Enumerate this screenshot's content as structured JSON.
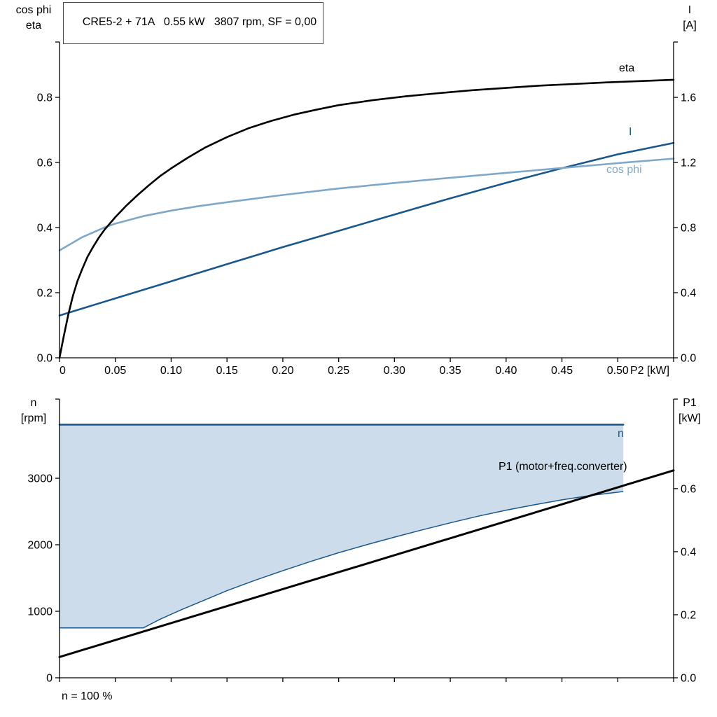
{
  "header": {
    "title": "CRE5-2 + 71A   0.55 kW   3807 rpm, SF = 0,00"
  },
  "axis_corner_labels": {
    "top_left_line1": "cos phi",
    "top_left_line2": "eta",
    "top_right_line1": "I",
    "top_right_line2": "[A]",
    "bottom_left_line1": "n",
    "bottom_left_line2": "[rpm]",
    "bottom_right_line1": "P1",
    "bottom_right_line2": "[kW]"
  },
  "curve_labels": {
    "eta": "eta",
    "current": "I",
    "cos_phi": "cos phi",
    "p1": "P1 (motor+freq.converter)",
    "n": "n"
  },
  "footer": {
    "speed_note": "n = 100 %"
  },
  "x_axis_label": "P2 [kW]",
  "colors": {
    "black": "#000000",
    "dark_blue": "#1a578c",
    "light_blue": "#7fa8c8",
    "fill_blue": "#cddcea"
  },
  "chart_data": [
    {
      "type": "line",
      "title": "CRE5-2 + 71A 0.55 kW 3807 rpm, SF = 0,00",
      "xlabel": "P2 [kW]",
      "ylabel_left": "cos phi, eta",
      "ylabel_right": "I [A]",
      "xlim": [
        0,
        0.55
      ],
      "ylim_left": [
        0,
        0.97
      ],
      "ylim_right": [
        0,
        1.94
      ],
      "xticks": {
        "values": [
          0,
          0.05,
          0.1,
          0.15,
          0.2,
          0.25,
          0.3,
          0.35,
          0.4,
          0.45,
          0.5,
          0.55
        ],
        "labels": [
          "0",
          "0.05",
          "0.10",
          "0.15",
          "0.20",
          "0.25",
          "0.30",
          "0.35",
          "0.40",
          "0.45",
          "0.50",
          ""
        ]
      },
      "yticks_left": {
        "values": [
          0,
          0.2,
          0.4,
          0.6,
          0.8
        ],
        "labels": [
          "0.0",
          "0.2",
          "0.4",
          "0.6",
          "0.8"
        ]
      },
      "yticks_right": {
        "values": [
          0,
          0.4,
          0.8,
          1.2,
          1.6
        ],
        "labels": [
          "0.0",
          "0.4",
          "0.8",
          "1.2",
          "1.6"
        ]
      },
      "series": [
        {
          "name": "I",
          "axis": "right",
          "color": "#1a578c",
          "width": 2.6,
          "points": [
            [
              0,
              0.26
            ],
            [
              0.05,
              0.365
            ],
            [
              0.1,
              0.47
            ],
            [
              0.15,
              0.575
            ],
            [
              0.2,
              0.68
            ],
            [
              0.25,
              0.78
            ],
            [
              0.3,
              0.88
            ],
            [
              0.35,
              0.98
            ],
            [
              0.4,
              1.075
            ],
            [
              0.45,
              1.165
            ],
            [
              0.5,
              1.25
            ],
            [
              0.55,
              1.32
            ]
          ]
        },
        {
          "name": "cos phi",
          "axis": "left",
          "color": "#7fa8c8",
          "width": 2.6,
          "points": [
            [
              0,
              0.33
            ],
            [
              0.02,
              0.37
            ],
            [
              0.04,
              0.4
            ],
            [
              0.05,
              0.412
            ],
            [
              0.075,
              0.435
            ],
            [
              0.1,
              0.452
            ],
            [
              0.125,
              0.466
            ],
            [
              0.15,
              0.478
            ],
            [
              0.2,
              0.5
            ],
            [
              0.25,
              0.52
            ],
            [
              0.3,
              0.537
            ],
            [
              0.35,
              0.553
            ],
            [
              0.4,
              0.568
            ],
            [
              0.45,
              0.583
            ],
            [
              0.5,
              0.598
            ],
            [
              0.55,
              0.612
            ]
          ]
        },
        {
          "name": "eta",
          "axis": "left",
          "color": "#000000",
          "width": 2.6,
          "points": [
            [
              0,
              0
            ],
            [
              0.004,
              0.07
            ],
            [
              0.008,
              0.135
            ],
            [
              0.012,
              0.19
            ],
            [
              0.016,
              0.235
            ],
            [
              0.02,
              0.27
            ],
            [
              0.025,
              0.31
            ],
            [
              0.03,
              0.34
            ],
            [
              0.035,
              0.368
            ],
            [
              0.04,
              0.392
            ],
            [
              0.05,
              0.432
            ],
            [
              0.06,
              0.468
            ],
            [
              0.07,
              0.5
            ],
            [
              0.08,
              0.53
            ],
            [
              0.09,
              0.558
            ],
            [
              0.1,
              0.582
            ],
            [
              0.115,
              0.615
            ],
            [
              0.13,
              0.645
            ],
            [
              0.15,
              0.678
            ],
            [
              0.17,
              0.706
            ],
            [
              0.19,
              0.728
            ],
            [
              0.21,
              0.747
            ],
            [
              0.23,
              0.762
            ],
            [
              0.25,
              0.776
            ],
            [
              0.28,
              0.791
            ],
            [
              0.31,
              0.803
            ],
            [
              0.34,
              0.813
            ],
            [
              0.37,
              0.822
            ],
            [
              0.4,
              0.829
            ],
            [
              0.43,
              0.836
            ],
            [
              0.46,
              0.841
            ],
            [
              0.49,
              0.846
            ],
            [
              0.52,
              0.85
            ],
            [
              0.55,
              0.854
            ]
          ]
        }
      ]
    },
    {
      "type": "line",
      "title": "Speed and input power",
      "xlabel": "",
      "ylabel_left": "n [rpm]",
      "ylabel_right": "P1 [kW]",
      "xlim": [
        0,
        0.55
      ],
      "ylim_left": [
        0,
        4190
      ],
      "ylim_right": [
        0,
        0.884
      ],
      "xticks": {
        "values": [
          0,
          0.05,
          0.1,
          0.15,
          0.2,
          0.25,
          0.3,
          0.35,
          0.4,
          0.45,
          0.5,
          0.55
        ],
        "labels": [
          "",
          "",
          "",
          "",
          "",
          "",
          "",
          "",
          "",
          "",
          "",
          ""
        ]
      },
      "yticks_left": {
        "values": [
          0,
          1000,
          2000,
          3000
        ],
        "labels": [
          "0",
          "1000",
          "2000",
          "3000"
        ]
      },
      "yticks_right": {
        "values": [
          0,
          0.2,
          0.4,
          0.6
        ],
        "labels": [
          "0.0",
          "0.2",
          "0.4",
          "0.6"
        ]
      },
      "fill_region": {
        "name": "speed-operating-envelope",
        "fill_color": "#cddcea",
        "edge_color": "#1a578c",
        "edge_width": 1.5,
        "fill_to": 3807,
        "boundary_points": [
          [
            0,
            750
          ],
          [
            0.075,
            750
          ],
          [
            0.09,
            880
          ],
          [
            0.11,
            1030
          ],
          [
            0.13,
            1170
          ],
          [
            0.15,
            1310
          ],
          [
            0.175,
            1465
          ],
          [
            0.2,
            1610
          ],
          [
            0.225,
            1750
          ],
          [
            0.25,
            1880
          ],
          [
            0.275,
            2000
          ],
          [
            0.3,
            2115
          ],
          [
            0.325,
            2225
          ],
          [
            0.35,
            2330
          ],
          [
            0.375,
            2430
          ],
          [
            0.4,
            2520
          ],
          [
            0.425,
            2600
          ],
          [
            0.45,
            2675
          ],
          [
            0.475,
            2740
          ],
          [
            0.505,
            2800
          ]
        ]
      },
      "series": [
        {
          "name": "P1 (motor+freq.converter)",
          "axis": "right",
          "color": "#000000",
          "width": 3,
          "points": [
            [
              0,
              0.066
            ],
            [
              0.55,
              0.658
            ]
          ]
        },
        {
          "name": "n",
          "axis": "left",
          "color": "#1a578c",
          "width": 2.6,
          "points": [
            [
              0,
              3807
            ],
            [
              0.505,
              3807
            ]
          ]
        }
      ]
    }
  ]
}
